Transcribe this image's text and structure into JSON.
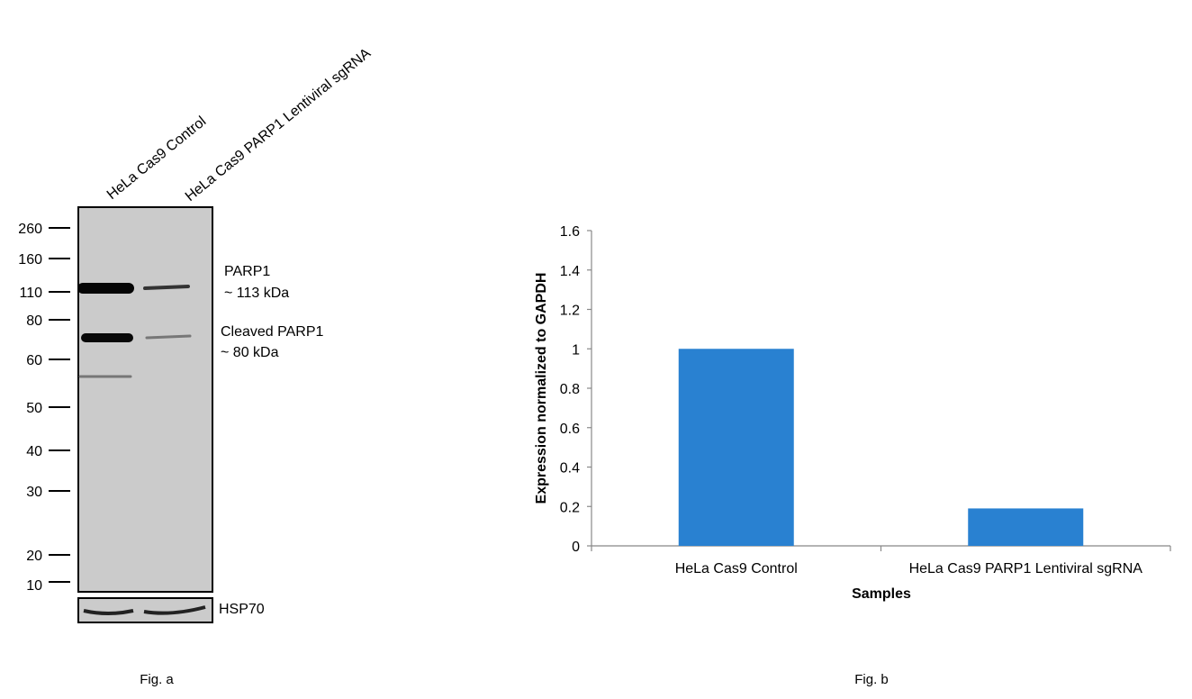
{
  "figure_a": {
    "caption": "Fig. a",
    "lane_labels": [
      "HeLa Cas9 Control",
      "HeLa Cas9 PARP1 Lentiviral sgRNA"
    ],
    "markers_kda": [
      "260",
      "160",
      "110",
      "80",
      "60",
      "50",
      "40",
      "30",
      "20",
      "10"
    ],
    "band_labels": [
      {
        "name": "PARP1",
        "size": "~ 113 kDa"
      },
      {
        "name": "Cleaved PARP1",
        "size": "~ 80 kDa"
      }
    ],
    "loading_control": "HSP70"
  },
  "chart_data": {
    "type": "bar",
    "caption": "Fig. b",
    "categories": [
      "HeLa Cas9 Control",
      "HeLa Cas9 PARP1 Lentiviral sgRNA"
    ],
    "values": [
      1.0,
      0.19
    ],
    "xlabel": "Samples",
    "ylabel": "Expression normalized to GAPDH",
    "ylim": [
      0,
      1.6
    ],
    "yticks": [
      "0",
      "0.2",
      "0.4",
      "0.6",
      "0.8",
      "1",
      "1.2",
      "1.4",
      "1.6"
    ],
    "grid": false,
    "legend": "none",
    "bar_color": "#2981d1"
  }
}
